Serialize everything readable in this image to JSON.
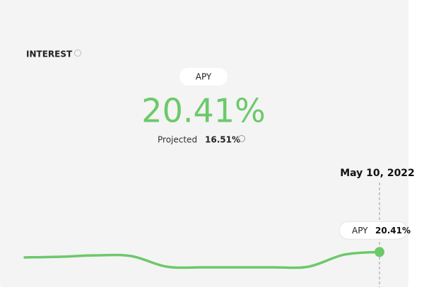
{
  "header": {
    "title": "INTEREST",
    "pill": "APY",
    "apy_value": "20.41%",
    "projected_label": "Projected",
    "projected_value": "16.51%"
  },
  "chart_data": {
    "type": "line",
    "categories": [
      null,
      null,
      null,
      null,
      null,
      null,
      null,
      null,
      null,
      null,
      "May 10, 2022"
    ],
    "series": [
      {
        "name": "APY",
        "color": "#6cc96a",
        "values": [
          19.86,
          19.93,
          20.07,
          20.0,
          18.93,
          18.86,
          18.86,
          18.86,
          18.93,
          20.14,
          20.41
        ],
        "value_labels": [
          null,
          null,
          null,
          null,
          null,
          null,
          null,
          null,
          null,
          null,
          "20.41%"
        ]
      }
    ],
    "ylim": [
      18.5,
      21
    ]
  }
}
